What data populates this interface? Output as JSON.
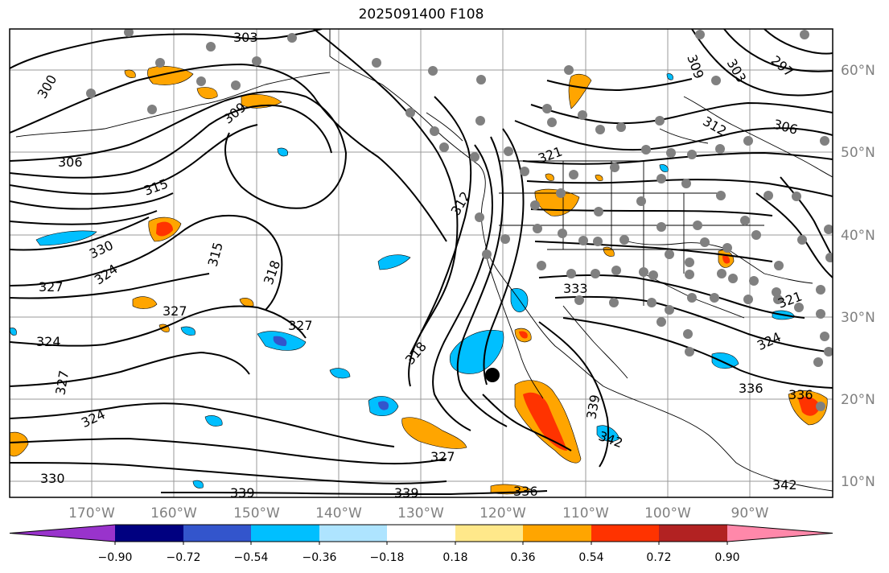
{
  "title": "2025091400 F108",
  "lat_labels": [
    "60°N",
    "50°N",
    "40°N",
    "30°N",
    "20°N",
    "10°N"
  ],
  "lon_labels": [
    "170°W",
    "160°W",
    "150°W",
    "140°W",
    "130°W",
    "120°W",
    "110°W",
    "100°W",
    "90°W"
  ],
  "colorbar": {
    "colors": [
      "#9933cc",
      "#000080",
      "#3355cc",
      "#00bfff",
      "#aee4ff",
      "#ffffff",
      "#ffe88a",
      "#ffa500",
      "#ff3300",
      "#b22222",
      "#ff88aa"
    ],
    "tick_labels": [
      "−0.90",
      "−0.72",
      "−0.54",
      "−0.36",
      "−0.18",
      "0.18",
      "0.36",
      "0.54",
      "0.72",
      "0.90"
    ]
  },
  "contour_labels": [
    "303",
    "300",
    "309",
    "306",
    "315",
    "312",
    "321",
    "330",
    "324",
    "327",
    "318",
    "333",
    "336",
    "339",
    "342",
    "297",
    "309",
    "303",
    "306",
    "312",
    "324",
    "321",
    "327",
    "324",
    "327",
    "315",
    "318",
    "327",
    "324",
    "336",
    "330",
    "339",
    "339",
    "336",
    "342",
    "327"
  ]
}
